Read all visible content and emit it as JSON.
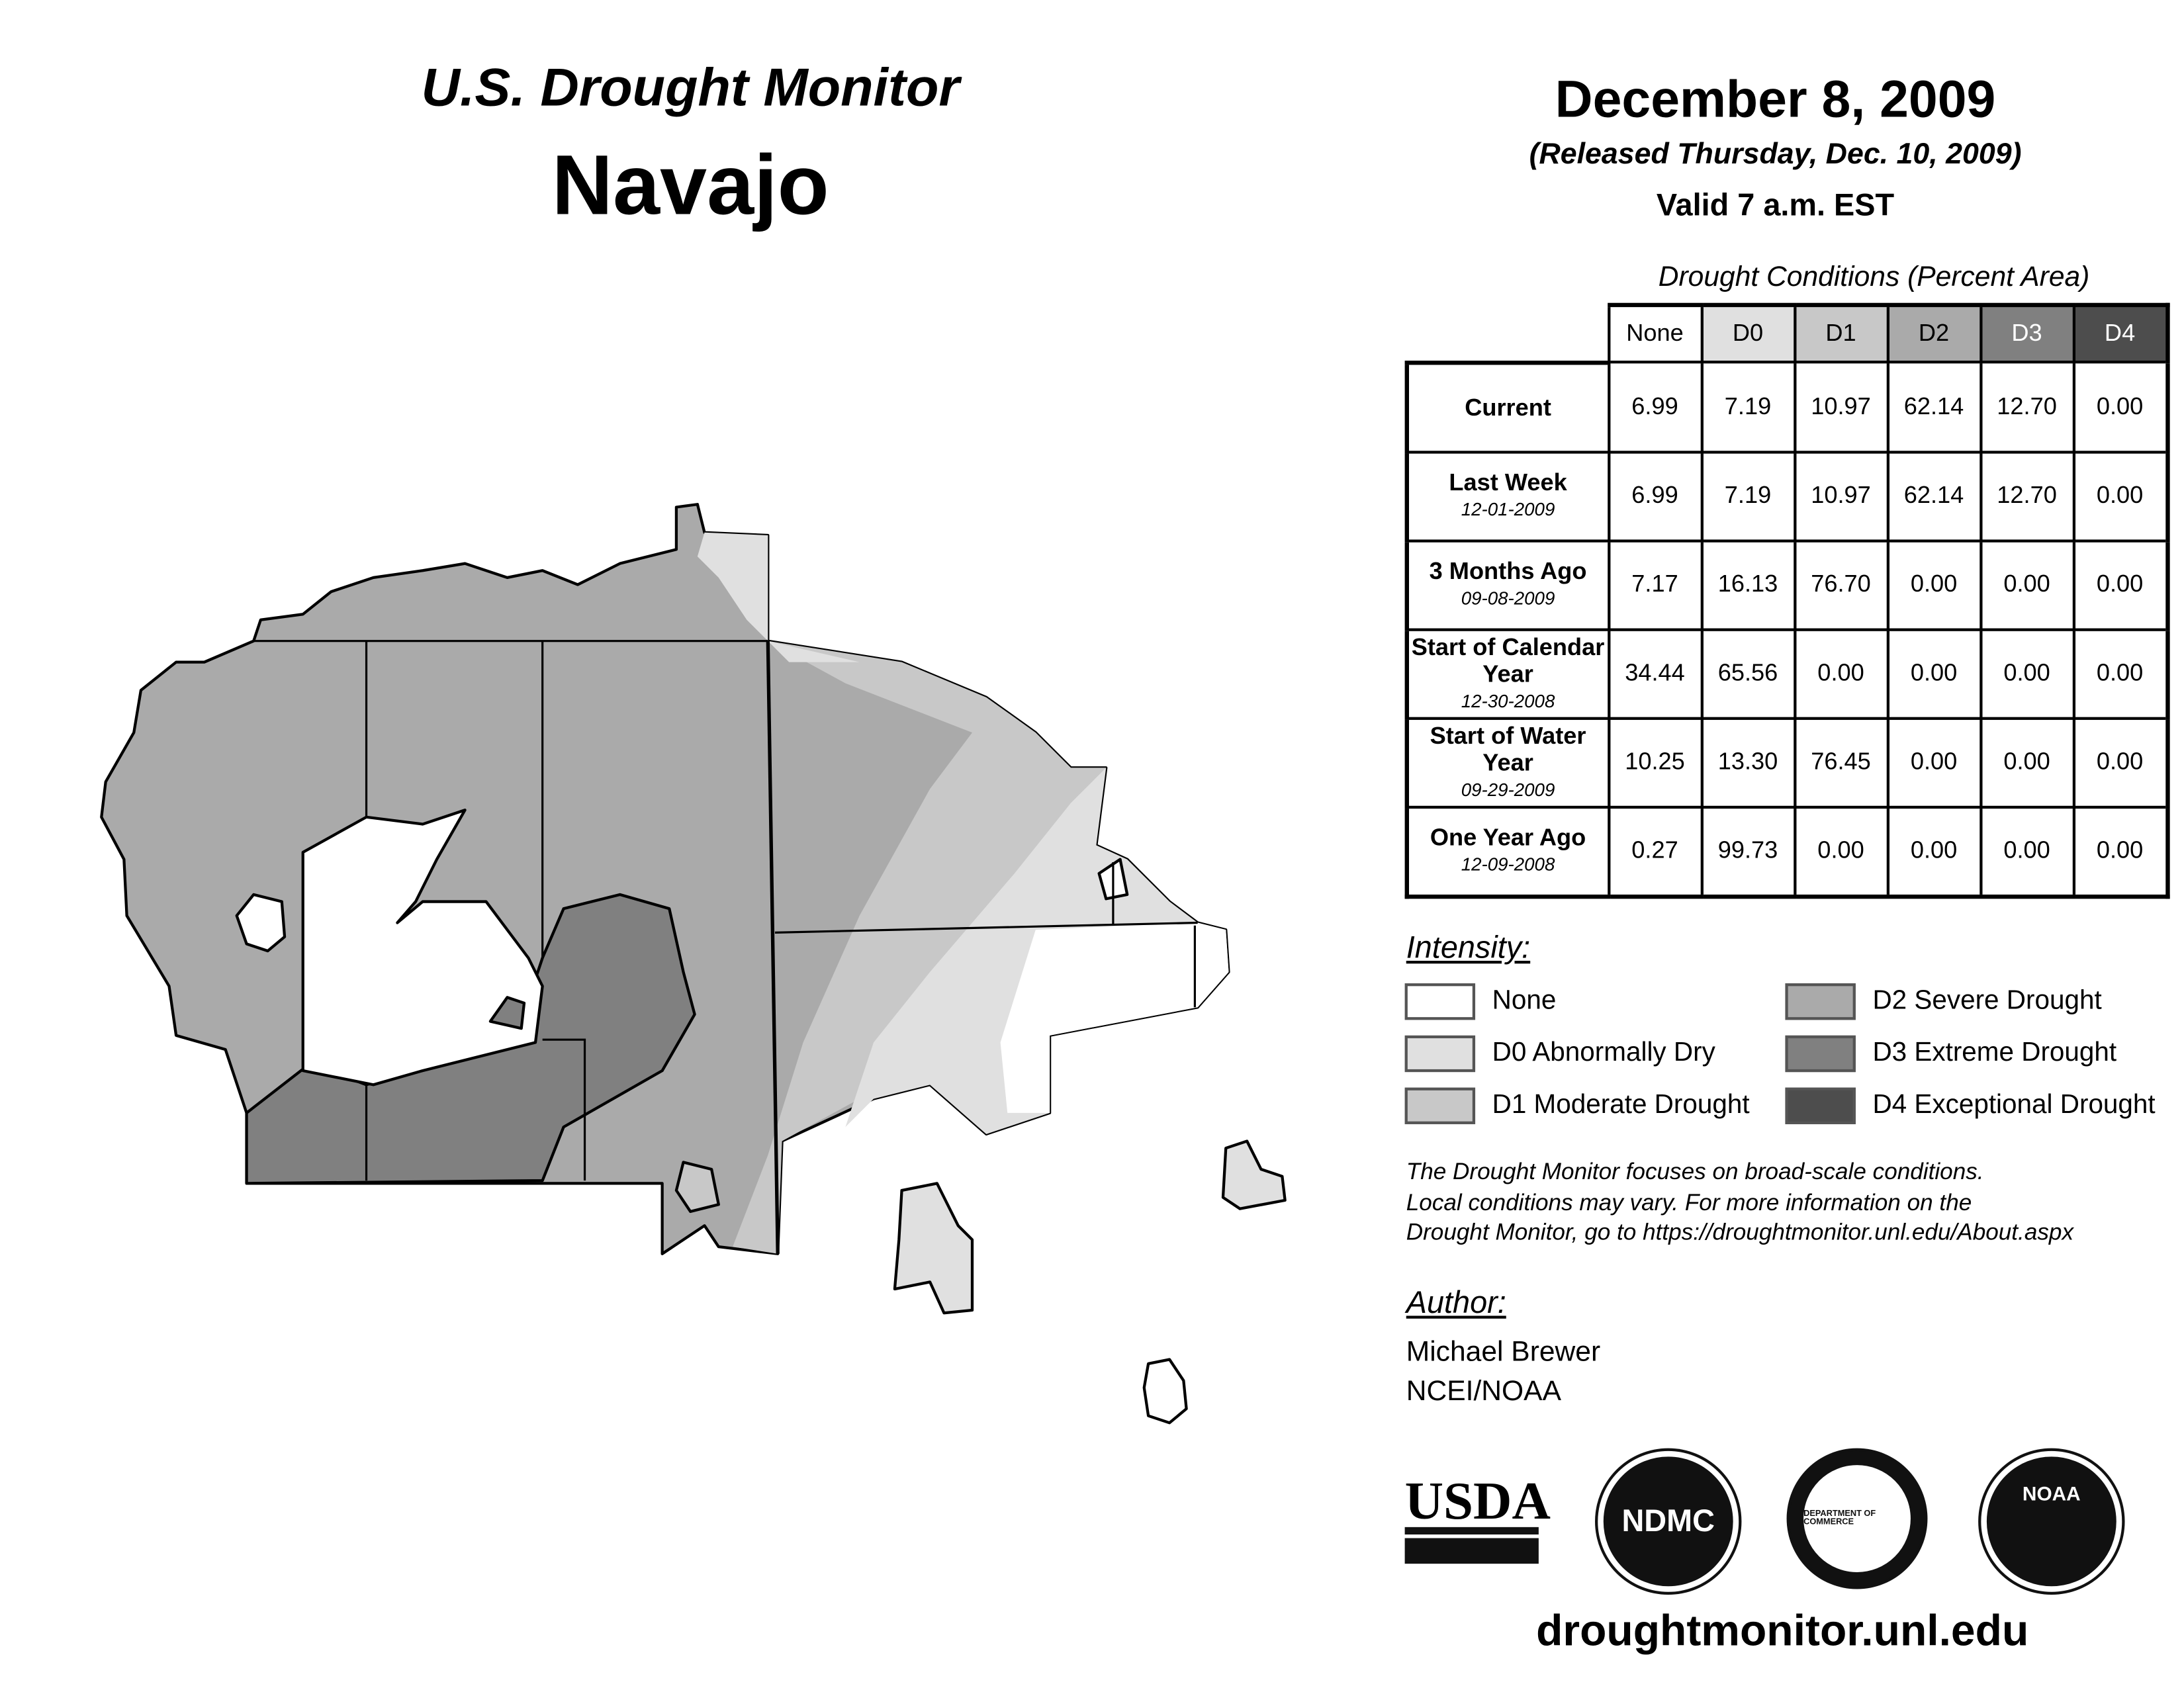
{
  "header": {
    "program": "U.S. Drought Monitor",
    "region": "Navajo",
    "date": "December 8, 2009",
    "released": "(Released Thursday, Dec. 10, 2009)",
    "valid": "Valid 7 a.m. EST"
  },
  "table": {
    "caption": "Drought Conditions (Percent Area)",
    "columns": [
      "None",
      "D0",
      "D1",
      "D2",
      "D3",
      "D4"
    ],
    "rows": [
      {
        "label": "Current",
        "date": "",
        "values": [
          "6.99",
          "7.19",
          "10.97",
          "62.14",
          "12.70",
          "0.00"
        ]
      },
      {
        "label": "Last Week",
        "date": "12-01-2009",
        "values": [
          "6.99",
          "7.19",
          "10.97",
          "62.14",
          "12.70",
          "0.00"
        ]
      },
      {
        "label": "3 Months Ago",
        "date": "09-08-2009",
        "values": [
          "7.17",
          "16.13",
          "76.70",
          "0.00",
          "0.00",
          "0.00"
        ]
      },
      {
        "label": "Start of Calendar Year",
        "date": "12-30-2008",
        "values": [
          "34.44",
          "65.56",
          "0.00",
          "0.00",
          "0.00",
          "0.00"
        ]
      },
      {
        "label": "Start of Water Year",
        "date": "09-29-2009",
        "values": [
          "10.25",
          "13.30",
          "76.45",
          "0.00",
          "0.00",
          "0.00"
        ]
      },
      {
        "label": "One Year Ago",
        "date": "12-09-2008",
        "values": [
          "0.27",
          "99.73",
          "0.00",
          "0.00",
          "0.00",
          "0.00"
        ]
      }
    ]
  },
  "legend": {
    "title": "Intensity:",
    "items": [
      {
        "label": "None",
        "color": "#ffffff"
      },
      {
        "label": "D0 Abnormally Dry",
        "color": "#e0e0e0"
      },
      {
        "label": "D1 Moderate Drought",
        "color": "#c8c8c8"
      },
      {
        "label": "D2 Severe Drought",
        "color": "#aaaaaa"
      },
      {
        "label": "D3 Extreme Drought",
        "color": "#808080"
      },
      {
        "label": "D4 Exceptional Drought",
        "color": "#4d4d4d"
      }
    ]
  },
  "note": [
    "The Drought Monitor focuses on broad-scale conditions.",
    "Local conditions may vary. For more information on the",
    "Drought Monitor, go to https://droughtmonitor.unl.edu/About.aspx"
  ],
  "author": {
    "title": "Author:",
    "name": "Michael Brewer",
    "org": "NCEI/NOAA"
  },
  "logos": {
    "usda": "USDA",
    "ndmc": "NDMC",
    "doc": "DEPARTMENT OF COMMERCE",
    "noaa": "NOAA"
  },
  "footer": {
    "url": "droughtmonitor.unl.edu"
  }
}
